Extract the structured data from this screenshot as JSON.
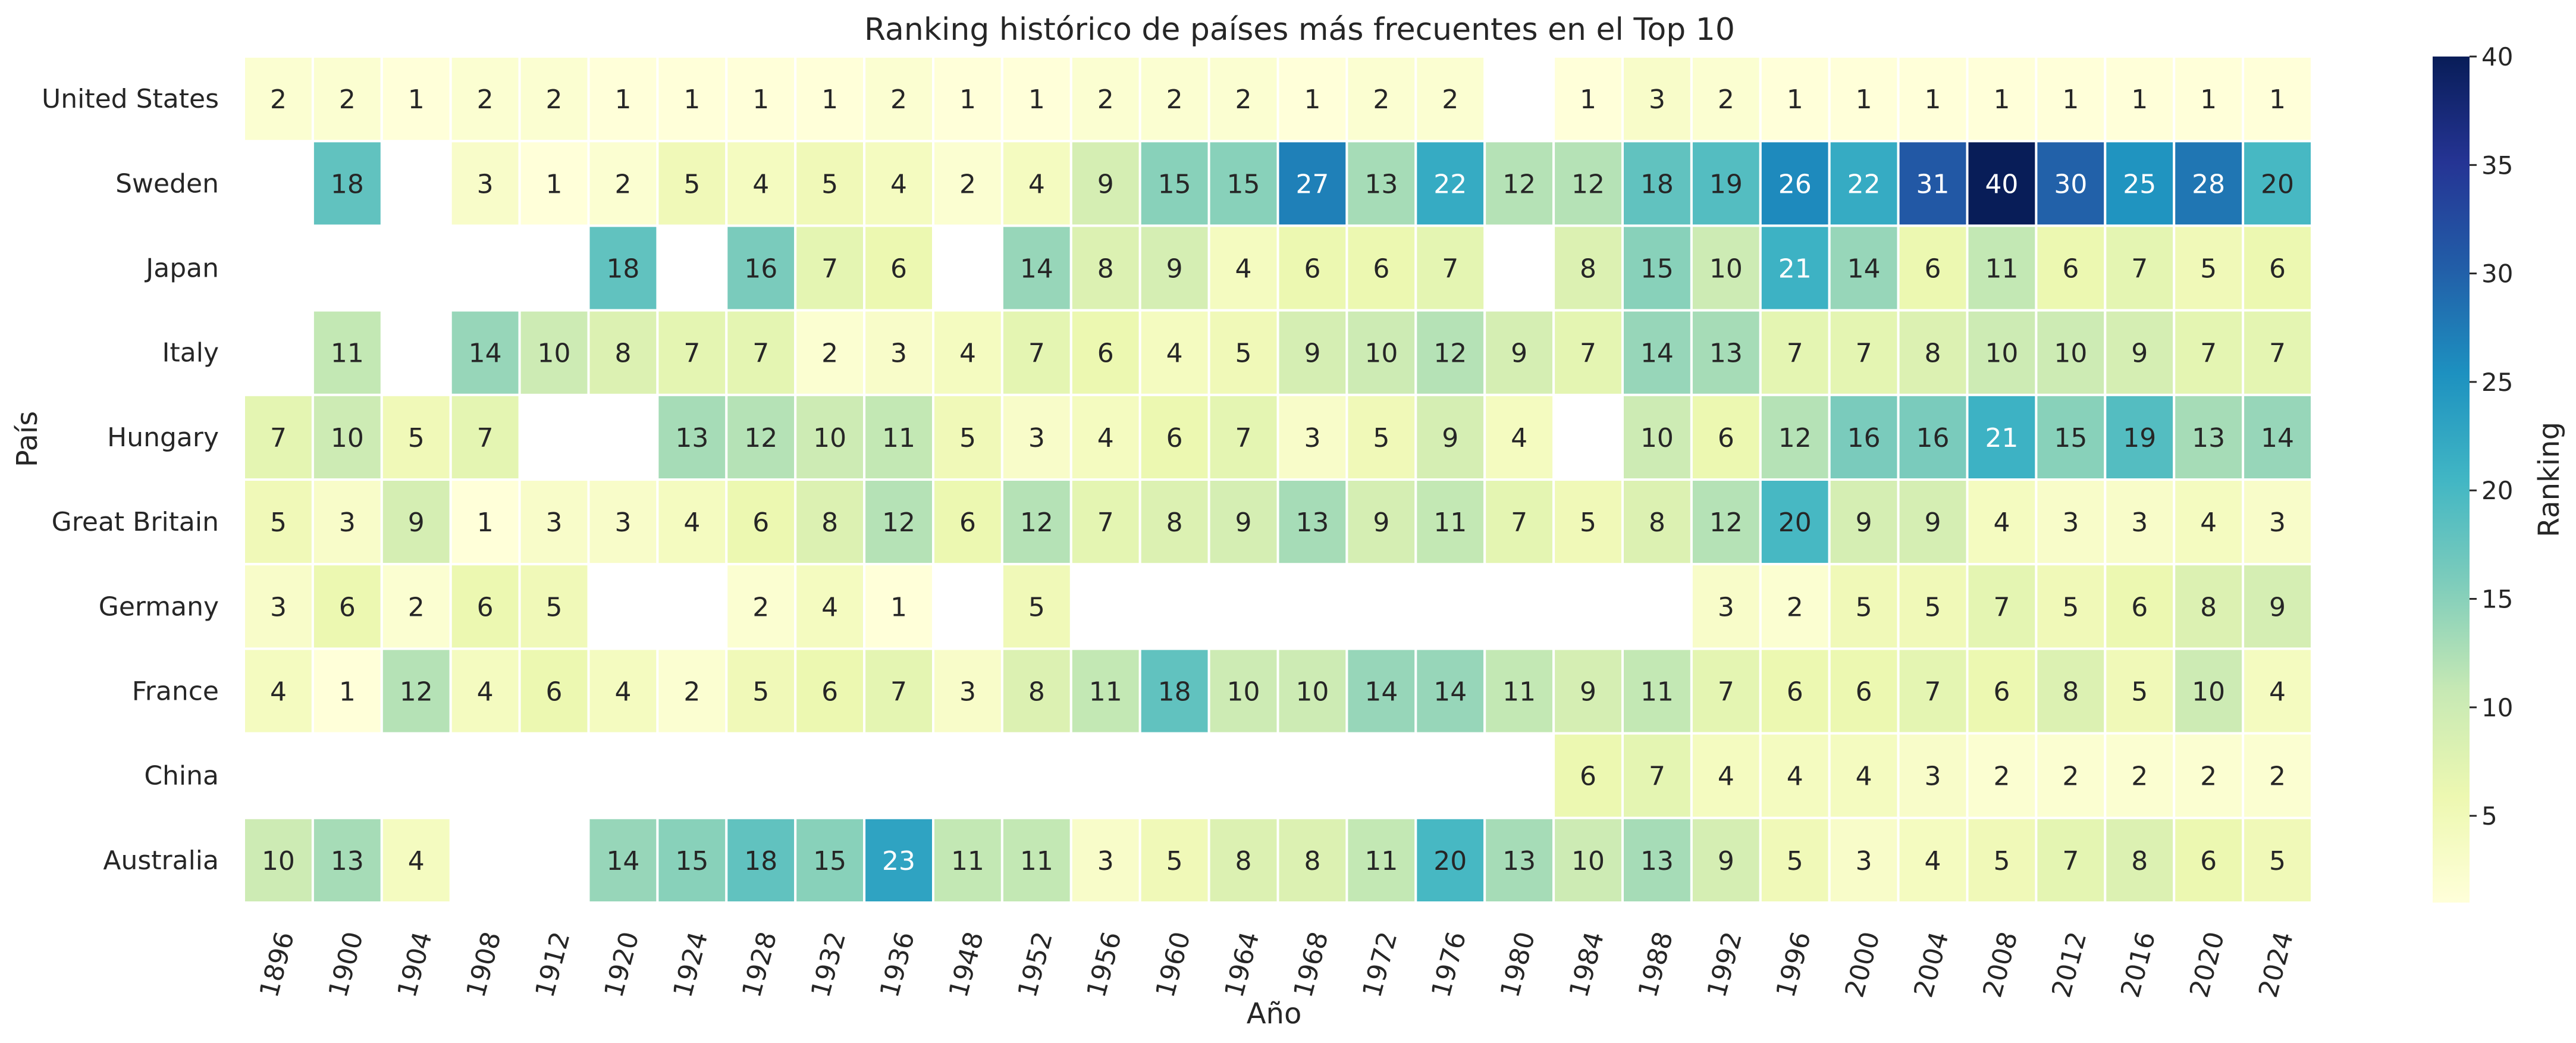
{
  "chart_data": {
    "type": "heatmap",
    "title": "Ranking histórico de países más frecuentes en el Top 10",
    "xlabel": "Año",
    "ylabel": "País",
    "colorbar_label": "Ranking",
    "colorbar_ticks": [
      5,
      10,
      15,
      20,
      25,
      30,
      35,
      40
    ],
    "colormap": "YlGnBu",
    "vmin": 1,
    "vmax": 40,
    "x": [
      "1896",
      "1900",
      "1904",
      "1908",
      "1912",
      "1920",
      "1924",
      "1928",
      "1932",
      "1936",
      "1948",
      "1952",
      "1956",
      "1960",
      "1964",
      "1968",
      "1972",
      "1976",
      "1980",
      "1984",
      "1988",
      "1992",
      "1996",
      "2000",
      "2004",
      "2008",
      "2012",
      "2016",
      "2020",
      "2024"
    ],
    "y": [
      "United States",
      "Sweden",
      "Japan",
      "Italy",
      "Hungary",
      "Great Britain",
      "Germany",
      "France",
      "China",
      "Australia"
    ],
    "values": [
      [
        2,
        2,
        1,
        2,
        2,
        1,
        1,
        1,
        1,
        2,
        1,
        1,
        2,
        2,
        2,
        1,
        2,
        2,
        null,
        1,
        3,
        2,
        1,
        1,
        1,
        1,
        1,
        1,
        1,
        1
      ],
      [
        null,
        18,
        null,
        3,
        1,
        2,
        5,
        4,
        5,
        4,
        2,
        4,
        9,
        15,
        15,
        27,
        13,
        22,
        12,
        12,
        18,
        19,
        26,
        22,
        31,
        40,
        30,
        25,
        28,
        20
      ],
      [
        null,
        null,
        null,
        null,
        null,
        18,
        null,
        16,
        7,
        6,
        null,
        14,
        8,
        9,
        4,
        6,
        6,
        7,
        null,
        8,
        15,
        10,
        21,
        14,
        6,
        11,
        6,
        7,
        5,
        6
      ],
      [
        null,
        11,
        null,
        14,
        10,
        8,
        7,
        7,
        2,
        3,
        4,
        7,
        6,
        4,
        5,
        9,
        10,
        12,
        9,
        7,
        14,
        13,
        7,
        7,
        8,
        10,
        10,
        9,
        7,
        7
      ],
      [
        7,
        10,
        5,
        7,
        null,
        null,
        13,
        12,
        10,
        11,
        5,
        3,
        4,
        6,
        7,
        3,
        5,
        9,
        4,
        null,
        10,
        6,
        12,
        16,
        16,
        21,
        15,
        19,
        13,
        14
      ],
      [
        5,
        3,
        9,
        1,
        3,
        3,
        4,
        6,
        8,
        12,
        6,
        12,
        7,
        8,
        9,
        13,
        9,
        11,
        7,
        5,
        8,
        12,
        20,
        9,
        9,
        4,
        3,
        3,
        4,
        3
      ],
      [
        3,
        6,
        2,
        6,
        5,
        null,
        null,
        2,
        4,
        1,
        null,
        5,
        null,
        null,
        null,
        null,
        null,
        null,
        null,
        null,
        null,
        3,
        2,
        5,
        5,
        7,
        5,
        6,
        8,
        9
      ],
      [
        4,
        1,
        12,
        4,
        6,
        4,
        2,
        5,
        6,
        7,
        3,
        8,
        11,
        18,
        10,
        10,
        14,
        14,
        11,
        9,
        11,
        7,
        6,
        6,
        7,
        6,
        8,
        5,
        10,
        4
      ],
      [
        null,
        null,
        null,
        null,
        null,
        null,
        null,
        null,
        null,
        null,
        null,
        null,
        null,
        null,
        null,
        null,
        null,
        null,
        null,
        6,
        7,
        4,
        4,
        4,
        3,
        2,
        2,
        2,
        2,
        2
      ],
      [
        10,
        13,
        4,
        null,
        null,
        14,
        15,
        18,
        15,
        23,
        11,
        11,
        3,
        5,
        8,
        8,
        11,
        20,
        13,
        10,
        13,
        9,
        5,
        3,
        4,
        5,
        7,
        8,
        6,
        5
      ]
    ]
  }
}
